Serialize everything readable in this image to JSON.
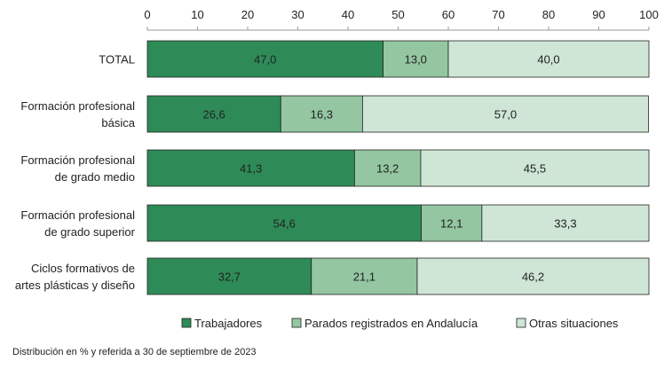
{
  "chart_data": {
    "type": "bar",
    "orientation": "horizontal",
    "stacked": true,
    "categories": [
      [
        "TOTAL"
      ],
      [
        "Formación profesional",
        "básica"
      ],
      [
        "Formación profesional",
        "de grado medio"
      ],
      [
        "Formación profesional",
        "de grado superior"
      ],
      [
        "Ciclos formativos de",
        "artes plásticas y diseño"
      ]
    ],
    "series": [
      {
        "name": "Trabajadores",
        "color": "#2e8b57",
        "values": [
          47.0,
          26.6,
          41.3,
          54.6,
          32.7
        ],
        "labels": [
          "47,0",
          "26,6",
          "41,3",
          "54,6",
          "32,7"
        ]
      },
      {
        "name": "Parados registrados en Andalucía",
        "color": "#93c6a1",
        "values": [
          13.0,
          16.3,
          13.2,
          12.1,
          21.1
        ],
        "labels": [
          "13,0",
          "16,3",
          "13,2",
          "12,1",
          "21,1"
        ]
      },
      {
        "name": "Otras situaciones",
        "color": "#cfe6d6",
        "values": [
          40.0,
          57.0,
          45.5,
          33.3,
          46.2
        ],
        "labels": [
          "40,0",
          "57,0",
          "45,5",
          "33,3",
          "46,2"
        ]
      }
    ],
    "xlim": [
      0,
      100
    ],
    "xticks": [
      0,
      10,
      20,
      30,
      40,
      50,
      60,
      70,
      80,
      90,
      100
    ],
    "axis_position": "top",
    "legend": "bottom",
    "grid": false,
    "note": "Distribución en % y referida a 30 de septiembre de 2023"
  }
}
